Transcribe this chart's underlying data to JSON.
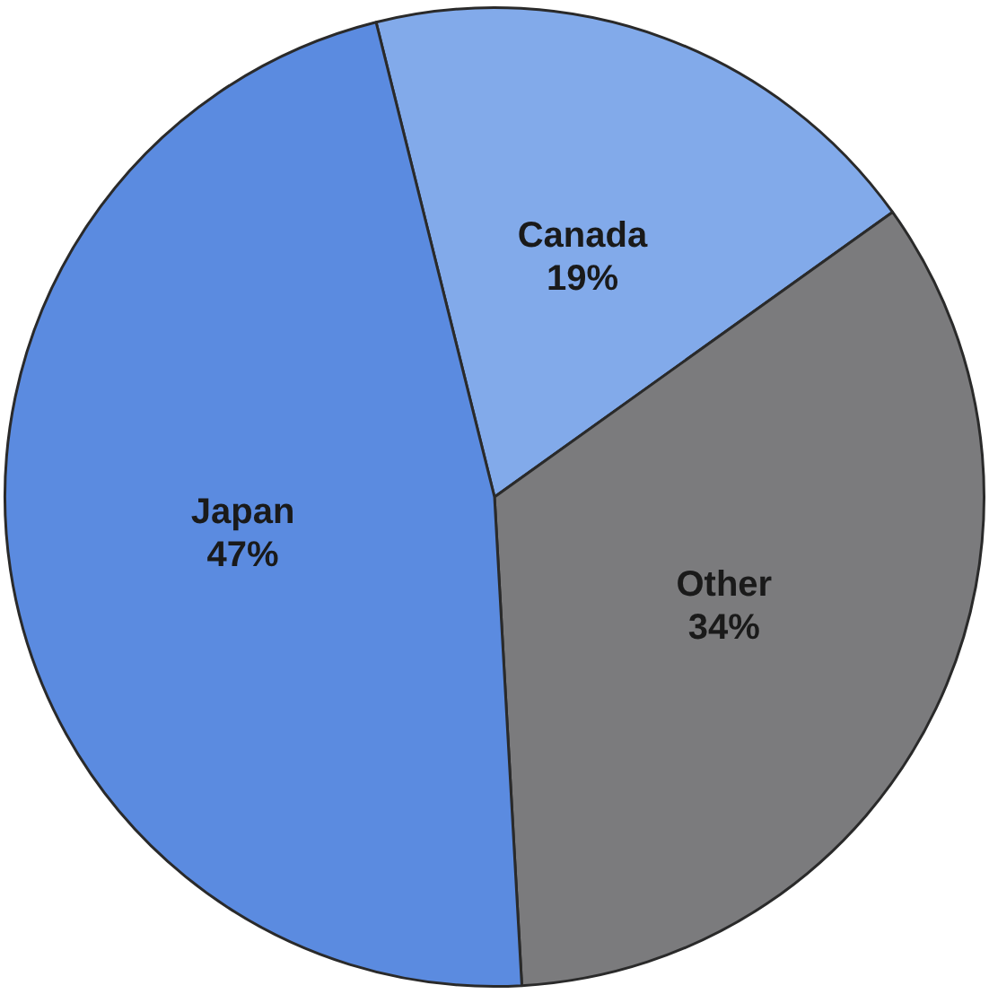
{
  "chart_data": {
    "type": "pie",
    "categories": [
      "Canada",
      "Other",
      "Japan"
    ],
    "values": [
      19,
      34,
      47
    ],
    "value_labels": [
      "19%",
      "34%",
      "47%"
    ],
    "colors": [
      "#82aaea",
      "#7b7b7d",
      "#5b8be0"
    ]
  }
}
